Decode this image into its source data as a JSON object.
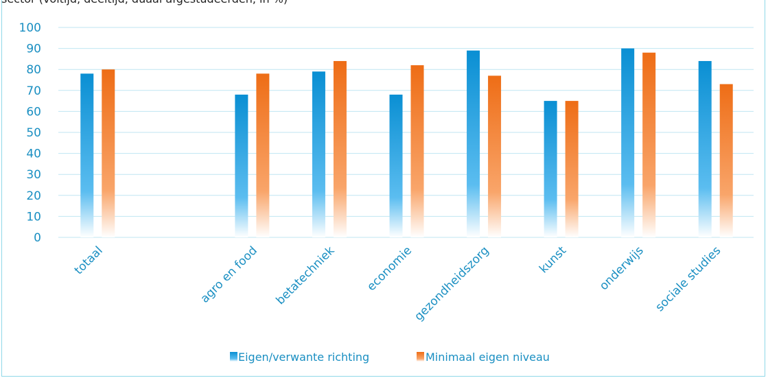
{
  "header": {
    "cut_title": "sector (voltijd, deeltijd, duaal afgestudeerden, in %)"
  },
  "colors": {
    "series1": "#1e9ad6",
    "series2": "#f07a22",
    "axis_text": "#1a8fc2",
    "grid": "#bfe6f2"
  },
  "chart_data": {
    "type": "bar",
    "title": "sector (voltijd, deeltijd, duaal afgestudeerden, in %)",
    "categories": [
      "totaal",
      "",
      "agro en food",
      "betatechniek",
      "economie",
      "gezondheidszorg",
      "kunst",
      "onderwijs",
      "sociale studies"
    ],
    "series": [
      {
        "name": "Eigen/verwante richting",
        "values": [
          78,
          null,
          68,
          79,
          68,
          89,
          65,
          90,
          84
        ]
      },
      {
        "name": "Minimaal eigen niveau",
        "values": [
          80,
          null,
          78,
          84,
          82,
          77,
          65,
          88,
          73
        ]
      }
    ],
    "ylim": [
      0,
      100
    ],
    "yticks": [
      0,
      10,
      20,
      30,
      40,
      50,
      60,
      70,
      80,
      90,
      100
    ],
    "grid": true,
    "legend_position": "bottom"
  }
}
